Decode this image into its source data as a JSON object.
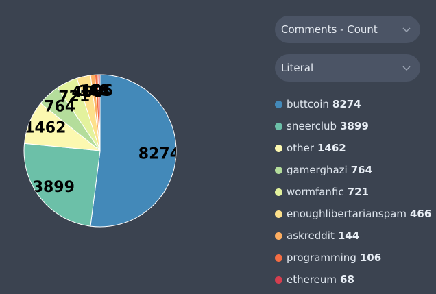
{
  "controls": {
    "metric": "Comments - Count",
    "mode": "Literal"
  },
  "chart_data": {
    "type": "pie",
    "categories": [
      "buttcoin",
      "sneerclub",
      "other",
      "gamerghazi",
      "wormfanfic",
      "enoughlibertarianspam",
      "askreddit",
      "programming",
      "ethereum"
    ],
    "values": [
      8274,
      3899,
      1462,
      764,
      721,
      466,
      144,
      106,
      68
    ],
    "colors": [
      "#4389b9",
      "#6cc0a8",
      "#fcf8b0",
      "#b4dd9b",
      "#e3f29d",
      "#fde08b",
      "#fdae61",
      "#f46d43",
      "#d53e4f"
    ]
  }
}
